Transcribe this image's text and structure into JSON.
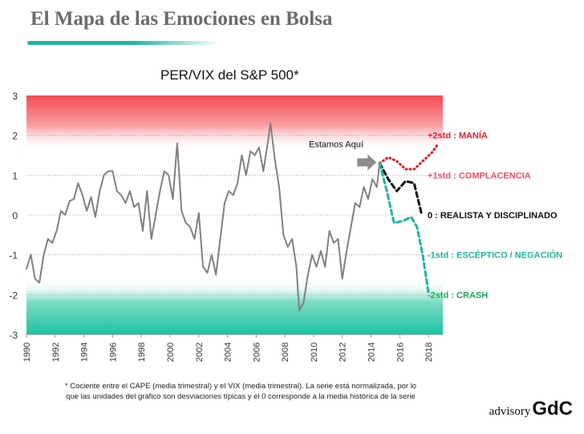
{
  "header": {
    "title": "El Mapa de las Emociones en Bolsa"
  },
  "chart_data": {
    "type": "line",
    "title": "PER/VIX del S&P 500*",
    "xlabel": "",
    "ylabel": "",
    "xlim": [
      1990,
      2019
    ],
    "ylim": [
      -3,
      3
    ],
    "x_ticks": [
      "1990",
      "1992",
      "1994",
      "1996",
      "1998",
      "2000",
      "2002",
      "2004",
      "2006",
      "2008",
      "2010",
      "2012",
      "2014",
      "2016",
      "2018"
    ],
    "y_ticks": [
      "3",
      "2",
      "1",
      "0",
      "-1",
      "-2",
      "-3"
    ],
    "series": [
      {
        "name": "",
        "color": "#808080",
        "x": [
          1990.0,
          1990.3,
          1990.6,
          1990.9,
          1991.2,
          1991.5,
          1991.8,
          1992.1,
          1992.4,
          1992.7,
          1993.0,
          1993.3,
          1993.6,
          1993.9,
          1994.2,
          1994.5,
          1994.8,
          1995.1,
          1995.4,
          1995.7,
          1996.0,
          1996.3,
          1996.6,
          1996.9,
          1997.2,
          1997.5,
          1997.8,
          1998.1,
          1998.4,
          1998.7,
          1999.0,
          1999.3,
          1999.6,
          1999.9,
          2000.2,
          2000.5,
          2000.8,
          2001.1,
          2001.4,
          2001.7,
          2002.0,
          2002.3,
          2002.6,
          2002.9,
          2003.2,
          2003.5,
          2003.8,
          2004.1,
          2004.4,
          2004.7,
          2005.0,
          2005.3,
          2005.6,
          2005.9,
          2006.2,
          2006.5,
          2006.8,
          2007.0,
          2007.3,
          2007.6,
          2007.9,
          2008.2,
          2008.5,
          2008.8,
          2009.0,
          2009.3,
          2009.6,
          2009.9,
          2010.2,
          2010.5,
          2010.8,
          2011.1,
          2011.4,
          2011.7,
          2012.0,
          2012.3,
          2012.6,
          2012.9,
          2013.2,
          2013.5,
          2013.8,
          2014.1,
          2014.4,
          2014.6
        ],
        "values": [
          -1.35,
          -1.0,
          -1.6,
          -1.7,
          -1.0,
          -0.6,
          -0.7,
          -0.4,
          0.1,
          0.0,
          0.35,
          0.4,
          0.8,
          0.5,
          0.1,
          0.45,
          -0.05,
          0.6,
          1.0,
          1.1,
          1.1,
          0.6,
          0.5,
          0.3,
          0.6,
          0.2,
          0.3,
          -0.4,
          0.6,
          -0.6,
          0.0,
          0.6,
          1.1,
          1.0,
          0.4,
          1.8,
          0.1,
          -0.2,
          -0.3,
          -0.6,
          0.05,
          -1.3,
          -1.45,
          -1.0,
          -1.5,
          -0.6,
          0.3,
          0.6,
          0.5,
          0.8,
          1.5,
          1.0,
          1.6,
          1.5,
          1.7,
          1.1,
          1.8,
          2.3,
          1.4,
          0.7,
          -0.5,
          -0.8,
          -0.6,
          -1.3,
          -2.4,
          -2.2,
          -1.5,
          -1.0,
          -1.3,
          -0.9,
          -1.3,
          -0.4,
          -0.7,
          -0.6,
          -1.6,
          -0.9,
          -0.3,
          0.3,
          0.2,
          0.7,
          0.4,
          0.9,
          0.7,
          1.3
        ]
      },
      {
        "name": "",
        "color": "#e8172b",
        "style": "dotted",
        "x": [
          2014.6,
          2015.2,
          2015.8,
          2016.4,
          2017.0,
          2017.6,
          2018.2,
          2018.6
        ],
        "values": [
          1.3,
          1.45,
          1.35,
          1.15,
          1.15,
          1.35,
          1.55,
          1.75
        ]
      },
      {
        "name": "",
        "color": "#111111",
        "style": "dashed",
        "x": [
          2014.6,
          2015.2,
          2015.8,
          2016.4,
          2017.0,
          2017.5
        ],
        "values": [
          1.3,
          0.9,
          0.6,
          0.85,
          0.8,
          0.05
        ]
      },
      {
        "name": "",
        "color": "#1fb5a0",
        "style": "dashed",
        "x": [
          2014.6,
          2015.1,
          2015.6,
          2016.2,
          2016.8,
          2017.2,
          2017.6,
          2018.0
        ],
        "values": [
          1.3,
          0.6,
          -0.2,
          -0.15,
          -0.05,
          -0.3,
          -1.0,
          -1.95
        ]
      }
    ],
    "bands": [
      {
        "label": "+2std : MANÍA",
        "y": 2,
        "color": "#e8172b"
      },
      {
        "label": "+1std : COMPLACENCIA",
        "y": 1,
        "color": "#e8506a"
      },
      {
        "label": "0 : REALISTA Y DISCIPLINADO",
        "y": 0,
        "color": "#111111"
      },
      {
        "label": "-1std : ESCÉPTICO / NEGACIÓN",
        "y": -1,
        "color": "#1fb5a0"
      },
      {
        "label": "-2std : CRASH",
        "y": -2,
        "color": "#1fa55a"
      }
    ],
    "annotation": {
      "text": "Estamos Aquí",
      "x": 2014.6,
      "y": 1.3
    },
    "grid": "dotted-horizontal",
    "legend": "none"
  },
  "footnote": {
    "line1": "* Cociente entre el CAPE (media trimestral) y el VIX (media trimestral). La serie está normalizada, por lo",
    "line2": "que las unidades del gráfico son desviaciones típicas y el 0 corresponde a la media histórica de la serie"
  },
  "logo": {
    "part1": "advisory",
    "part2": "GdC"
  }
}
